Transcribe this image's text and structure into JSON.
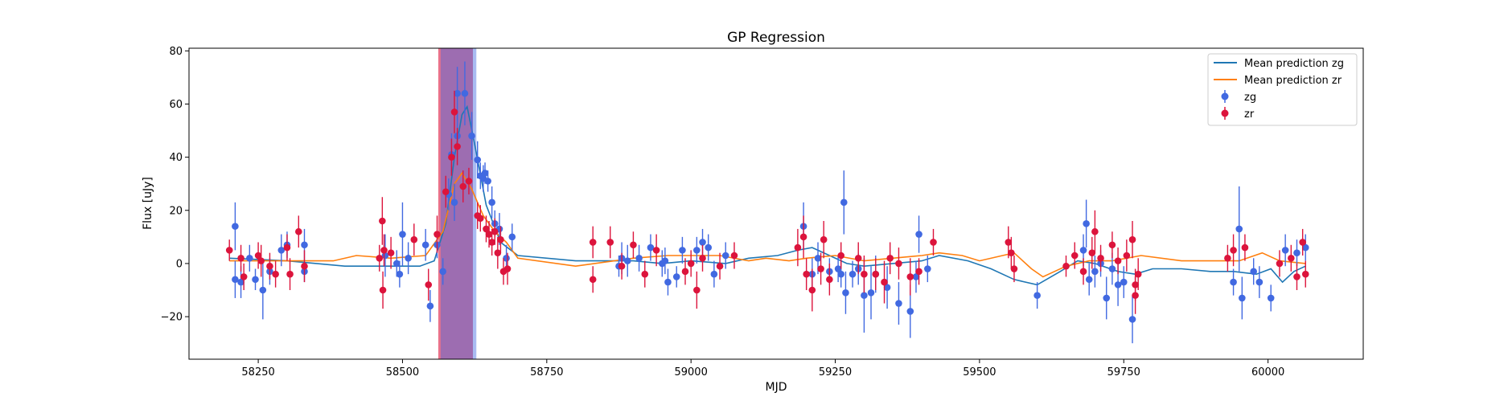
{
  "chart_data": {
    "type": "scatter",
    "title": "GP Regression",
    "xlabel": "MJD",
    "ylabel": "Flux [uJy]",
    "xlim": [
      58130,
      60165
    ],
    "ylim": [
      -36,
      81
    ],
    "xticks": [
      58250,
      58500,
      58750,
      59000,
      59250,
      59500,
      59750,
      60000
    ],
    "yticks": [
      -20,
      0,
      20,
      40,
      60,
      80
    ],
    "grid": false,
    "legend_position": "top-right",
    "colors": {
      "zg": "#4169e1",
      "zr": "#dc143c",
      "mean_zg": "#1f77b4",
      "mean_zr": "#ff7f0e"
    },
    "spans": [
      {
        "x0": 58562,
        "x1": 58622,
        "color": "#dc143c",
        "opacity": 0.6
      },
      {
        "x0": 58566,
        "x1": 58628,
        "color": "#4169e1",
        "opacity": 0.45
      }
    ],
    "series": [
      {
        "name": "Mean prediction zg",
        "kind": "line",
        "color": "#1f77b4",
        "points": [
          [
            58200,
            2
          ],
          [
            58300,
            1
          ],
          [
            58400,
            -1
          ],
          [
            58470,
            -1
          ],
          [
            58530,
            -1
          ],
          [
            58555,
            1
          ],
          [
            58575,
            15
          ],
          [
            58590,
            40
          ],
          [
            58603,
            56
          ],
          [
            58612,
            59
          ],
          [
            58625,
            45
          ],
          [
            58645,
            22
          ],
          [
            58670,
            8
          ],
          [
            58700,
            3
          ],
          [
            58800,
            1
          ],
          [
            58900,
            1
          ],
          [
            58950,
            0
          ],
          [
            59000,
            1
          ],
          [
            59060,
            0
          ],
          [
            59100,
            2
          ],
          [
            59150,
            3
          ],
          [
            59185,
            5
          ],
          [
            59210,
            6
          ],
          [
            59240,
            3
          ],
          [
            59270,
            0
          ],
          [
            59300,
            -1
          ],
          [
            59350,
            0
          ],
          [
            59400,
            1
          ],
          [
            59430,
            3
          ],
          [
            59480,
            1
          ],
          [
            59520,
            -2
          ],
          [
            59560,
            -6
          ],
          [
            59600,
            -8
          ],
          [
            59640,
            -3
          ],
          [
            59670,
            1
          ],
          [
            59700,
            0
          ],
          [
            59740,
            -3
          ],
          [
            59770,
            -4
          ],
          [
            59800,
            -2
          ],
          [
            59850,
            -2
          ],
          [
            59900,
            -3
          ],
          [
            59940,
            -3
          ],
          [
            59980,
            -4
          ],
          [
            60005,
            -2
          ],
          [
            60025,
            -7
          ],
          [
            60045,
            -3
          ],
          [
            60065,
            -1
          ]
        ]
      },
      {
        "name": "Mean prediction zr",
        "kind": "line",
        "color": "#ff7f0e",
        "points": [
          [
            58200,
            1
          ],
          [
            58300,
            1
          ],
          [
            58380,
            1
          ],
          [
            58420,
            3
          ],
          [
            58480,
            2
          ],
          [
            58540,
            3
          ],
          [
            58570,
            12
          ],
          [
            58590,
            30
          ],
          [
            58603,
            34
          ],
          [
            58620,
            28
          ],
          [
            58640,
            18
          ],
          [
            58660,
            12
          ],
          [
            58680,
            8
          ],
          [
            58700,
            2
          ],
          [
            58800,
            -1
          ],
          [
            58900,
            2
          ],
          [
            58960,
            3
          ],
          [
            59000,
            3
          ],
          [
            59050,
            3
          ],
          [
            59100,
            1
          ],
          [
            59130,
            2
          ],
          [
            59170,
            1
          ],
          [
            59200,
            2
          ],
          [
            59250,
            3
          ],
          [
            59300,
            1
          ],
          [
            59400,
            3
          ],
          [
            59430,
            4
          ],
          [
            59470,
            3
          ],
          [
            59500,
            1
          ],
          [
            59540,
            3
          ],
          [
            59560,
            4
          ],
          [
            59590,
            -2
          ],
          [
            59610,
            -5
          ],
          [
            59650,
            -1
          ],
          [
            59690,
            1
          ],
          [
            59730,
            1
          ],
          [
            59780,
            3
          ],
          [
            59850,
            1
          ],
          [
            59900,
            1
          ],
          [
            59950,
            1
          ],
          [
            59990,
            4
          ],
          [
            60020,
            1
          ],
          [
            60065,
            0
          ]
        ]
      },
      {
        "name": "zg",
        "kind": "errorbar",
        "color": "#4169e1",
        "points": [
          [
            58210,
            14,
            9
          ],
          [
            58210,
            -6,
            7
          ],
          [
            58220,
            -7,
            6
          ],
          [
            58235,
            2,
            5
          ],
          [
            58245,
            -6,
            4
          ],
          [
            58258,
            -10,
            11
          ],
          [
            58270,
            -3,
            5
          ],
          [
            58290,
            5,
            6
          ],
          [
            58300,
            7,
            5
          ],
          [
            58330,
            7,
            6
          ],
          [
            58330,
            -3,
            4
          ],
          [
            58470,
            3,
            8
          ],
          [
            58490,
            0,
            5
          ],
          [
            58495,
            -4,
            5
          ],
          [
            58500,
            11,
            12
          ],
          [
            58510,
            2,
            6
          ],
          [
            58540,
            7,
            6
          ],
          [
            58548,
            -16,
            6
          ],
          [
            58560,
            7,
            5
          ],
          [
            58570,
            -3,
            5
          ],
          [
            58580,
            26,
            6
          ],
          [
            58585,
            41,
            8
          ],
          [
            58590,
            23,
            7
          ],
          [
            58595,
            48,
            9
          ],
          [
            58595,
            64,
            10
          ],
          [
            58608,
            64,
            12
          ],
          [
            58620,
            48,
            9
          ],
          [
            58630,
            39,
            7
          ],
          [
            58635,
            33,
            5
          ],
          [
            58640,
            32,
            5
          ],
          [
            58643,
            34,
            4
          ],
          [
            58648,
            31,
            4
          ],
          [
            58655,
            23,
            6
          ],
          [
            58660,
            15,
            5
          ],
          [
            58668,
            13,
            6
          ],
          [
            58680,
            2,
            5
          ],
          [
            58690,
            10,
            5
          ],
          [
            58875,
            -1,
            4
          ],
          [
            58880,
            2,
            6
          ],
          [
            58890,
            1,
            6
          ],
          [
            58910,
            2,
            5
          ],
          [
            58930,
            6,
            5
          ],
          [
            58950,
            0,
            5
          ],
          [
            58955,
            1,
            5
          ],
          [
            58960,
            -7,
            5
          ],
          [
            58975,
            -5,
            4
          ],
          [
            58985,
            5,
            5
          ],
          [
            59010,
            5,
            5
          ],
          [
            59020,
            8,
            5
          ],
          [
            59030,
            6,
            5
          ],
          [
            59040,
            -4,
            5
          ],
          [
            59060,
            3,
            5
          ],
          [
            59195,
            14,
            9
          ],
          [
            59210,
            -4,
            6
          ],
          [
            59220,
            2,
            6
          ],
          [
            59240,
            -3,
            5
          ],
          [
            59255,
            -2,
            5
          ],
          [
            59260,
            -4,
            5
          ],
          [
            59265,
            23,
            12
          ],
          [
            59268,
            -11,
            8
          ],
          [
            59280,
            -4,
            5
          ],
          [
            59290,
            -2,
            6
          ],
          [
            59300,
            -12,
            14
          ],
          [
            59312,
            -11,
            10
          ],
          [
            59320,
            -4,
            7
          ],
          [
            59340,
            -9,
            8
          ],
          [
            59360,
            -15,
            8
          ],
          [
            59380,
            -18,
            10
          ],
          [
            59390,
            -5,
            6
          ],
          [
            59395,
            11,
            7
          ],
          [
            59410,
            -2,
            5
          ],
          [
            59600,
            -12,
            5
          ],
          [
            59680,
            5,
            6
          ],
          [
            59685,
            15,
            9
          ],
          [
            59690,
            -6,
            6
          ],
          [
            59700,
            -3,
            6
          ],
          [
            59710,
            0,
            5
          ],
          [
            59720,
            -13,
            8
          ],
          [
            59730,
            -2,
            6
          ],
          [
            59740,
            -8,
            8
          ],
          [
            59750,
            -7,
            6
          ],
          [
            59765,
            -21,
            9
          ],
          [
            59940,
            -7,
            5
          ],
          [
            59950,
            13,
            16
          ],
          [
            59955,
            -13,
            8
          ],
          [
            59975,
            -3,
            5
          ],
          [
            59985,
            -7,
            6
          ],
          [
            60005,
            -13,
            5
          ],
          [
            60030,
            5,
            6
          ],
          [
            60050,
            4,
            5
          ],
          [
            60065,
            6,
            5
          ]
        ]
      },
      {
        "name": "zr",
        "kind": "errorbar",
        "color": "#dc143c",
        "points": [
          [
            58200,
            5,
            4
          ],
          [
            58220,
            2,
            5
          ],
          [
            58225,
            -5,
            5
          ],
          [
            58250,
            3,
            5
          ],
          [
            58255,
            1,
            6
          ],
          [
            58270,
            -1,
            5
          ],
          [
            58280,
            -4,
            5
          ],
          [
            58300,
            6,
            5
          ],
          [
            58305,
            -4,
            6
          ],
          [
            58320,
            12,
            6
          ],
          [
            58330,
            -1,
            6
          ],
          [
            58460,
            2,
            5
          ],
          [
            58465,
            16,
            9
          ],
          [
            58466,
            -10,
            7
          ],
          [
            58468,
            5,
            6
          ],
          [
            58480,
            4,
            6
          ],
          [
            58520,
            9,
            6
          ],
          [
            58545,
            -8,
            6
          ],
          [
            58560,
            11,
            7
          ],
          [
            58575,
            27,
            6
          ],
          [
            58585,
            40,
            7
          ],
          [
            58590,
            57,
            8
          ],
          [
            58595,
            44,
            7
          ],
          [
            58605,
            29,
            6
          ],
          [
            58615,
            31,
            5
          ],
          [
            58630,
            18,
            5
          ],
          [
            58635,
            17,
            5
          ],
          [
            58645,
            13,
            5
          ],
          [
            58650,
            11,
            5
          ],
          [
            58655,
            8,
            5
          ],
          [
            58660,
            12,
            5
          ],
          [
            58665,
            4,
            6
          ],
          [
            58670,
            9,
            5
          ],
          [
            58675,
            -3,
            5
          ],
          [
            58682,
            -2,
            6
          ],
          [
            58830,
            -6,
            5
          ],
          [
            58830,
            8,
            6
          ],
          [
            58860,
            8,
            6
          ],
          [
            58880,
            -1,
            5
          ],
          [
            58900,
            7,
            5
          ],
          [
            58920,
            -4,
            5
          ],
          [
            58940,
            5,
            6
          ],
          [
            58990,
            -3,
            5
          ],
          [
            59000,
            0,
            5
          ],
          [
            59010,
            -10,
            7
          ],
          [
            59020,
            2,
            5
          ],
          [
            59050,
            -1,
            5
          ],
          [
            59075,
            3,
            5
          ],
          [
            59185,
            6,
            7
          ],
          [
            59195,
            10,
            8
          ],
          [
            59200,
            -4,
            6
          ],
          [
            59210,
            -10,
            8
          ],
          [
            59225,
            -2,
            6
          ],
          [
            59230,
            9,
            7
          ],
          [
            59240,
            -6,
            6
          ],
          [
            59260,
            3,
            5
          ],
          [
            59290,
            2,
            6
          ],
          [
            59300,
            -4,
            7
          ],
          [
            59320,
            -4,
            6
          ],
          [
            59335,
            -7,
            8
          ],
          [
            59345,
            2,
            6
          ],
          [
            59360,
            0,
            6
          ],
          [
            59380,
            -5,
            7
          ],
          [
            59395,
            -3,
            5
          ],
          [
            59420,
            8,
            5
          ],
          [
            59550,
            8,
            6
          ],
          [
            59555,
            4,
            6
          ],
          [
            59560,
            -2,
            5
          ],
          [
            59650,
            -1,
            4
          ],
          [
            59665,
            3,
            5
          ],
          [
            59680,
            -3,
            5
          ],
          [
            59695,
            4,
            6
          ],
          [
            59700,
            12,
            8
          ],
          [
            59710,
            2,
            5
          ],
          [
            59730,
            7,
            5
          ],
          [
            59740,
            1,
            5
          ],
          [
            59755,
            3,
            6
          ],
          [
            59765,
            9,
            7
          ],
          [
            59770,
            -8,
            6
          ],
          [
            59770,
            -12,
            7
          ],
          [
            59775,
            -4,
            6
          ],
          [
            59930,
            2,
            5
          ],
          [
            59940,
            5,
            6
          ],
          [
            59960,
            6,
            5
          ],
          [
            60020,
            0,
            5
          ],
          [
            60040,
            2,
            5
          ],
          [
            60050,
            -5,
            5
          ],
          [
            60060,
            8,
            5
          ],
          [
            60065,
            -4,
            5
          ]
        ]
      }
    ]
  }
}
